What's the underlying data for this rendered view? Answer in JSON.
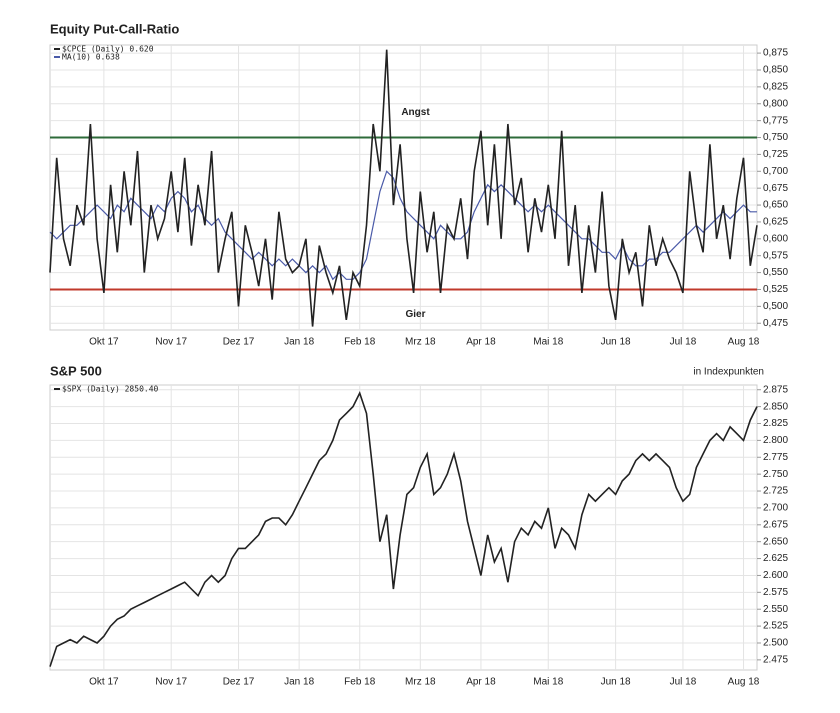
{
  "chart_data": [
    {
      "type": "line",
      "title": "Equity Put-Call-Ratio",
      "categories": [
        null,
        null,
        null,
        null,
        null,
        null,
        null,
        null,
        "Okt 17",
        null,
        null,
        null,
        null,
        null,
        null,
        null,
        null,
        null,
        "Nov 17",
        null,
        null,
        null,
        null,
        null,
        null,
        null,
        null,
        null,
        "Dez 17",
        null,
        null,
        null,
        null,
        null,
        null,
        null,
        null,
        "Jan 18",
        null,
        null,
        null,
        null,
        null,
        null,
        null,
        null,
        "Feb 18",
        null,
        null,
        null,
        null,
        null,
        null,
        null,
        null,
        "Mrz 18",
        null,
        null,
        null,
        null,
        null,
        null,
        null,
        null,
        "Apr 18",
        null,
        null,
        null,
        null,
        null,
        null,
        null,
        null,
        null,
        "Mai 18",
        null,
        null,
        null,
        null,
        null,
        null,
        null,
        null,
        null,
        "Jun 18",
        null,
        null,
        null,
        null,
        null,
        null,
        null,
        null,
        null,
        "Jul 18",
        null,
        null,
        null,
        null,
        null,
        null,
        null,
        null,
        "Aug 18",
        null,
        null
      ],
      "series": [
        {
          "name": "$CPCE (Daily) 0.620",
          "color": "#222222",
          "values": [
            0.55,
            0.72,
            0.6,
            0.56,
            0.65,
            0.62,
            0.77,
            0.6,
            0.52,
            0.68,
            0.58,
            0.7,
            0.62,
            0.73,
            0.55,
            0.65,
            0.6,
            0.63,
            0.7,
            0.61,
            0.72,
            0.59,
            0.68,
            0.62,
            0.73,
            0.55,
            0.6,
            0.64,
            0.5,
            0.62,
            0.58,
            0.53,
            0.6,
            0.51,
            0.64,
            0.57,
            0.55,
            0.56,
            0.6,
            0.47,
            0.59,
            0.55,
            0.52,
            0.56,
            0.48,
            0.55,
            0.53,
            0.62,
            0.77,
            0.7,
            0.88,
            0.65,
            0.74,
            0.6,
            0.52,
            0.67,
            0.58,
            0.64,
            0.52,
            0.62,
            0.6,
            0.66,
            0.57,
            0.7,
            0.76,
            0.62,
            0.74,
            0.6,
            0.77,
            0.65,
            0.69,
            0.58,
            0.66,
            0.61,
            0.68,
            0.6,
            0.76,
            0.56,
            0.65,
            0.52,
            0.62,
            0.55,
            0.67,
            0.53,
            0.48,
            0.6,
            0.55,
            0.58,
            0.5,
            0.62,
            0.56,
            0.6,
            0.57,
            0.55,
            0.52,
            0.7,
            0.62,
            0.58,
            0.74,
            0.6,
            0.65,
            0.57,
            0.66,
            0.72,
            0.56,
            0.62
          ]
        },
        {
          "name": "MA(10) 0.638",
          "color": "#4a5aa8",
          "values": [
            0.61,
            0.6,
            0.61,
            0.62,
            0.62,
            0.63,
            0.64,
            0.65,
            0.64,
            0.63,
            0.65,
            0.64,
            0.66,
            0.65,
            0.64,
            0.63,
            0.65,
            0.64,
            0.66,
            0.67,
            0.66,
            0.64,
            0.65,
            0.63,
            0.62,
            0.63,
            0.61,
            0.6,
            0.59,
            0.58,
            0.57,
            0.58,
            0.57,
            0.56,
            0.57,
            0.56,
            0.57,
            0.56,
            0.55,
            0.56,
            0.55,
            0.56,
            0.54,
            0.55,
            0.54,
            0.54,
            0.55,
            0.57,
            0.62,
            0.67,
            0.7,
            0.69,
            0.66,
            0.64,
            0.63,
            0.62,
            0.61,
            0.6,
            0.62,
            0.61,
            0.6,
            0.6,
            0.61,
            0.64,
            0.66,
            0.68,
            0.67,
            0.68,
            0.67,
            0.66,
            0.65,
            0.64,
            0.65,
            0.64,
            0.65,
            0.64,
            0.63,
            0.62,
            0.61,
            0.6,
            0.6,
            0.59,
            0.58,
            0.58,
            0.57,
            0.59,
            0.57,
            0.56,
            0.56,
            0.57,
            0.57,
            0.58,
            0.58,
            0.59,
            0.6,
            0.61,
            0.62,
            0.61,
            0.62,
            0.63,
            0.64,
            0.63,
            0.64,
            0.65,
            0.64,
            0.64
          ]
        }
      ],
      "hlines": [
        {
          "value": 0.75,
          "color": "#2e6b3a",
          "label": "Angst",
          "label_color": "#1e7a34"
        },
        {
          "value": 0.525,
          "color": "#c0392b",
          "label": "Gier",
          "label_color": "#d0103a"
        }
      ],
      "ylim": [
        0.465,
        0.887
      ],
      "yticks": [
        {
          "value": 0.475,
          "label": "0,475"
        },
        {
          "value": 0.5,
          "label": "0,500"
        },
        {
          "value": 0.525,
          "label": "0,525"
        },
        {
          "value": 0.55,
          "label": "0,550"
        },
        {
          "value": 0.575,
          "label": "0,575"
        },
        {
          "value": 0.6,
          "label": "0,600"
        },
        {
          "value": 0.625,
          "label": "0,625"
        },
        {
          "value": 0.65,
          "label": "0,650"
        },
        {
          "value": 0.675,
          "label": "0,675"
        },
        {
          "value": 0.7,
          "label": "0,700"
        },
        {
          "value": 0.725,
          "label": "0,725"
        },
        {
          "value": 0.75,
          "label": "0,750"
        },
        {
          "value": 0.775,
          "label": "0,775"
        },
        {
          "value": 0.8,
          "label": "0,800"
        },
        {
          "value": 0.825,
          "label": "0,825"
        },
        {
          "value": 0.85,
          "label": "0,850"
        },
        {
          "value": 0.875,
          "label": "0,875"
        }
      ],
      "grid": true
    },
    {
      "type": "line",
      "title": "S&P 500",
      "subtitle": "in Indexpunkten",
      "categories": [
        null,
        null,
        null,
        null,
        null,
        null,
        null,
        null,
        "Okt 17",
        null,
        null,
        null,
        null,
        null,
        null,
        null,
        null,
        null,
        "Nov 17",
        null,
        null,
        null,
        null,
        null,
        null,
        null,
        null,
        null,
        "Dez 17",
        null,
        null,
        null,
        null,
        null,
        null,
        null,
        null,
        "Jan 18",
        null,
        null,
        null,
        null,
        null,
        null,
        null,
        null,
        "Feb 18",
        null,
        null,
        null,
        null,
        null,
        null,
        null,
        null,
        "Mrz 18",
        null,
        null,
        null,
        null,
        null,
        null,
        null,
        null,
        "Apr 18",
        null,
        null,
        null,
        null,
        null,
        null,
        null,
        null,
        null,
        "Mai 18",
        null,
        null,
        null,
        null,
        null,
        null,
        null,
        null,
        null,
        "Jun 18",
        null,
        null,
        null,
        null,
        null,
        null,
        null,
        null,
        null,
        "Jul 18",
        null,
        null,
        null,
        null,
        null,
        null,
        null,
        null,
        "Aug 18",
        null,
        null
      ],
      "series": [
        {
          "name": "$SPX (Daily) 2850.40",
          "color": "#222222",
          "values": [
            2.465,
            2.495,
            2.5,
            2.505,
            2.5,
            2.51,
            2.505,
            2.5,
            2.51,
            2.525,
            2.535,
            2.54,
            2.55,
            2.555,
            2.56,
            2.565,
            2.57,
            2.575,
            2.58,
            2.585,
            2.59,
            2.58,
            2.57,
            2.59,
            2.6,
            2.59,
            2.6,
            2.625,
            2.64,
            2.64,
            2.65,
            2.66,
            2.68,
            2.685,
            2.685,
            2.675,
            2.69,
            2.71,
            2.73,
            2.75,
            2.77,
            2.78,
            2.8,
            2.83,
            2.84,
            2.85,
            2.87,
            2.84,
            2.75,
            2.65,
            2.69,
            2.58,
            2.66,
            2.72,
            2.73,
            2.76,
            2.78,
            2.72,
            2.73,
            2.75,
            2.78,
            2.74,
            2.68,
            2.64,
            2.6,
            2.66,
            2.62,
            2.64,
            2.59,
            2.65,
            2.67,
            2.66,
            2.68,
            2.67,
            2.7,
            2.64,
            2.67,
            2.66,
            2.64,
            2.69,
            2.72,
            2.71,
            2.72,
            2.73,
            2.72,
            2.74,
            2.75,
            2.77,
            2.78,
            2.77,
            2.78,
            2.77,
            2.76,
            2.73,
            2.71,
            2.72,
            2.76,
            2.78,
            2.8,
            2.81,
            2.8,
            2.82,
            2.81,
            2.8,
            2.83,
            2.85
          ]
        }
      ],
      "ylim": [
        2.46,
        2.882
      ],
      "yticks": [
        {
          "value": 2.475,
          "label": "2.475"
        },
        {
          "value": 2.5,
          "label": "2.500"
        },
        {
          "value": 2.525,
          "label": "2.525"
        },
        {
          "value": 2.55,
          "label": "2.550"
        },
        {
          "value": 2.575,
          "label": "2.575"
        },
        {
          "value": 2.6,
          "label": "2.600"
        },
        {
          "value": 2.625,
          "label": "2.625"
        },
        {
          "value": 2.65,
          "label": "2.650"
        },
        {
          "value": 2.675,
          "label": "2.675"
        },
        {
          "value": 2.7,
          "label": "2.700"
        },
        {
          "value": 2.725,
          "label": "2.725"
        },
        {
          "value": 2.75,
          "label": "2.750"
        },
        {
          "value": 2.775,
          "label": "2.775"
        },
        {
          "value": 2.8,
          "label": "2.800"
        },
        {
          "value": 2.825,
          "label": "2.825"
        },
        {
          "value": 2.85,
          "label": "2.850"
        },
        {
          "value": 2.875,
          "label": "2.875"
        }
      ],
      "grid": true
    }
  ]
}
